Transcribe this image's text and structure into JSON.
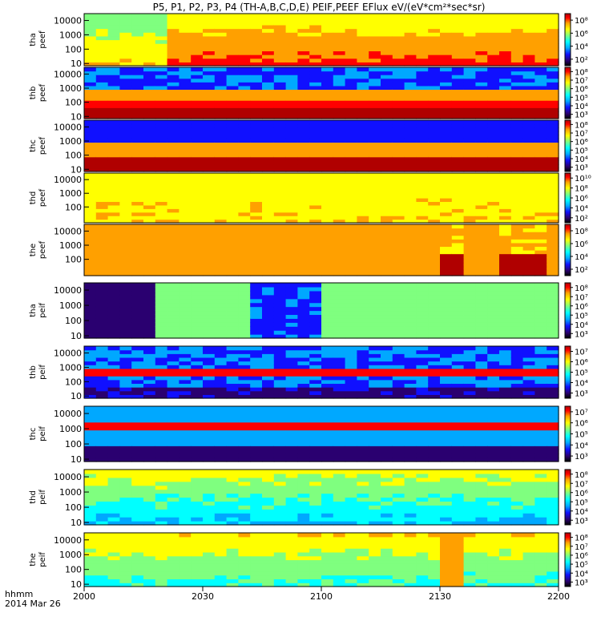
{
  "title": "P5, P1, P2, P3, P4 (TH-A,B,C,D,E) PEIF,PEEF EFlux eV/(eV*cm²*sec*sr)",
  "colors": {
    "colormap": [
      "#000000",
      "#2a0070",
      "#1010ff",
      "#00a8ff",
      "#00ffff",
      "#7fff7f",
      "#ffff00",
      "#ffa000",
      "#ff0000",
      "#b00000"
    ],
    "axis": "#000000",
    "separator": "#ffffff"
  },
  "x_axis": {
    "ticks": [
      "2000",
      "2030",
      "2100",
      "2130",
      "2200"
    ],
    "label_line1": "hhmm",
    "label_line2": "2014 Mar 26"
  },
  "chart_data": [
    {
      "type": "heatmap",
      "panel": "tha_peef",
      "ylabel": [
        "tha",
        "peef"
      ],
      "yticks": [
        "10",
        "100",
        "1000",
        "10000"
      ],
      "cbar_ticks": [
        "10²",
        "10⁴",
        "10⁶",
        "10⁸"
      ],
      "x_range": [
        "2000",
        "2200"
      ],
      "y_scale": "log",
      "description_level": [
        5,
        6,
        6,
        5,
        7,
        6,
        6,
        6,
        5,
        6
      ]
    },
    {
      "type": "heatmap",
      "panel": "thb_peef",
      "ylabel": [
        "thb",
        "peef"
      ],
      "yticks": [
        "10",
        "100",
        "1000",
        "10000"
      ],
      "cbar_ticks": [
        "10³",
        "10⁴",
        "10⁵",
        "10⁶",
        "10⁷",
        "10⁸"
      ],
      "x_range": [
        "2000",
        "2200"
      ],
      "y_scale": "log"
    },
    {
      "type": "heatmap",
      "panel": "thc_peef",
      "ylabel": [
        "thc",
        "peef"
      ],
      "yticks": [
        "10",
        "100",
        "1000",
        "10000"
      ],
      "cbar_ticks": [
        "10³",
        "10⁴",
        "10⁵",
        "10⁶",
        "10⁷",
        "10⁸"
      ],
      "x_range": [
        "2000",
        "2200"
      ],
      "y_scale": "log"
    },
    {
      "type": "heatmap",
      "panel": "thd_peef",
      "ylabel": [
        "thd",
        "peef"
      ],
      "yticks": [
        "100",
        "1000",
        "10000"
      ],
      "cbar_ticks": [
        "10²",
        "10⁴",
        "10⁶",
        "10⁸",
        "10¹⁰"
      ],
      "x_range": [
        "2000",
        "2200"
      ],
      "y_scale": "log"
    },
    {
      "type": "heatmap",
      "panel": "the_peef",
      "ylabel": [
        "the",
        "peef"
      ],
      "yticks": [
        "100",
        "1000",
        "10000"
      ],
      "cbar_ticks": [
        "10²",
        "10⁴",
        "10⁶",
        "10⁸"
      ],
      "x_range": [
        "2000",
        "2200"
      ],
      "y_scale": "log"
    },
    {
      "type": "heatmap",
      "panel": "tha_peif",
      "ylabel": [
        "tha",
        "peif"
      ],
      "yticks": [
        "10",
        "100",
        "1000",
        "10000"
      ],
      "cbar_ticks": [
        "10³",
        "10⁴",
        "10⁵",
        "10⁶",
        "10⁷",
        "10⁸"
      ],
      "x_range": [
        "2000",
        "2200"
      ],
      "y_scale": "log"
    },
    {
      "type": "heatmap",
      "panel": "thb_peif",
      "ylabel": [
        "thb",
        "peif"
      ],
      "yticks": [
        "10",
        "100",
        "1000",
        "10000"
      ],
      "cbar_ticks": [
        "10³",
        "10⁴",
        "10⁵",
        "10⁶",
        "10⁷"
      ],
      "x_range": [
        "2000",
        "2200"
      ],
      "y_scale": "log"
    },
    {
      "type": "heatmap",
      "panel": "thc_peif",
      "ylabel": [
        "thc",
        "peif"
      ],
      "yticks": [
        "10",
        "100",
        "1000",
        "10000"
      ],
      "cbar_ticks": [
        "10³",
        "10⁴",
        "10⁵",
        "10⁶",
        "10⁷"
      ],
      "x_range": [
        "2000",
        "2200"
      ],
      "y_scale": "log"
    },
    {
      "type": "heatmap",
      "panel": "thd_peif",
      "ylabel": [
        "thd",
        "peif"
      ],
      "yticks": [
        "10",
        "100",
        "1000",
        "10000"
      ],
      "cbar_ticks": [
        "10³",
        "10⁴",
        "10⁵",
        "10⁶",
        "10⁷",
        "10⁸"
      ],
      "x_range": [
        "2000",
        "2200"
      ],
      "y_scale": "log"
    },
    {
      "type": "heatmap",
      "panel": "the_peif",
      "ylabel": [
        "the",
        "peif"
      ],
      "yticks": [
        "10",
        "100",
        "1000",
        "10000"
      ],
      "cbar_ticks": [
        "10³",
        "10⁴",
        "10⁵",
        "10⁶",
        "10⁷",
        "10⁸"
      ],
      "x_range": [
        "2000",
        "2200"
      ],
      "y_scale": "log"
    }
  ]
}
